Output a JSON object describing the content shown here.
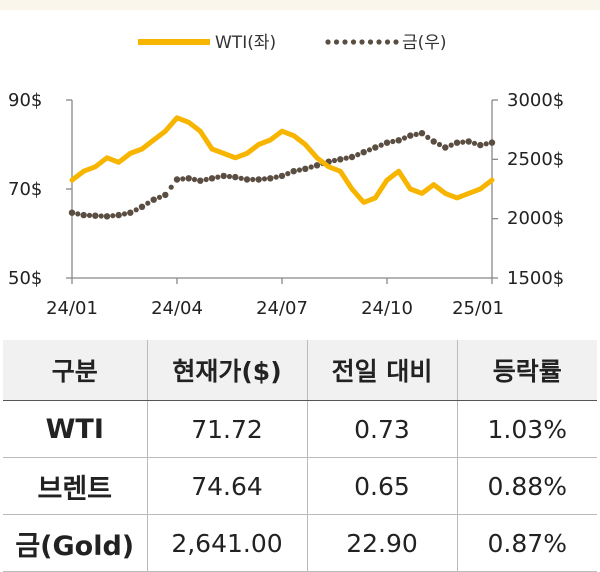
{
  "chart_data": {
    "type": "line",
    "legend": [
      {
        "name": "WTI(좌)",
        "color": "#f7b500",
        "style": "solid"
      },
      {
        "name": "금(우)",
        "color": "#5a4d42",
        "style": "dotted"
      }
    ],
    "legend_position": "top-right",
    "x_ticks": [
      "24/01",
      "24/04",
      "24/07",
      "24/10",
      "25/01"
    ],
    "y_left": {
      "ticks": [
        "90$",
        "70$",
        "50$"
      ],
      "min": 50,
      "max": 90
    },
    "y_right": {
      "ticks": [
        "3000$",
        "2500$",
        "2000$",
        "1500$"
      ],
      "min": 1500,
      "max": 3000
    },
    "series": [
      {
        "name": "WTI(좌)",
        "axis": "left",
        "x": [
          "24/01",
          "24/01",
          "24/01",
          "24/02",
          "24/02",
          "24/02",
          "24/03",
          "24/03",
          "24/03",
          "24/04",
          "24/04",
          "24/04",
          "24/05",
          "24/05",
          "24/05",
          "24/06",
          "24/06",
          "24/06",
          "24/07",
          "24/07",
          "24/07",
          "24/08",
          "24/08",
          "24/08",
          "24/09",
          "24/09",
          "24/09",
          "24/10",
          "24/10",
          "24/10",
          "24/11",
          "24/11",
          "24/11",
          "24/12",
          "24/12",
          "24/12",
          "25/01"
        ],
        "values": [
          72,
          74,
          75,
          77,
          76,
          78,
          79,
          81,
          83,
          86,
          85,
          83,
          79,
          78,
          77,
          78,
          80,
          81,
          83,
          82,
          80,
          77,
          75,
          74,
          70,
          67,
          68,
          72,
          74,
          70,
          69,
          71,
          69,
          68,
          69,
          70,
          72
        ]
      },
      {
        "name": "금(우)",
        "axis": "right",
        "x": [
          "24/01",
          "24/01",
          "24/01",
          "24/02",
          "24/02",
          "24/02",
          "24/03",
          "24/03",
          "24/03",
          "24/04",
          "24/04",
          "24/04",
          "24/05",
          "24/05",
          "24/05",
          "24/06",
          "24/06",
          "24/06",
          "24/07",
          "24/07",
          "24/07",
          "24/08",
          "24/08",
          "24/08",
          "24/09",
          "24/09",
          "24/09",
          "24/10",
          "24/10",
          "24/10",
          "24/11",
          "24/11",
          "24/11",
          "24/12",
          "24/12",
          "24/12",
          "25/01"
        ],
        "values": [
          2050,
          2030,
          2025,
          2020,
          2030,
          2050,
          2100,
          2160,
          2200,
          2330,
          2340,
          2320,
          2340,
          2360,
          2350,
          2330,
          2330,
          2340,
          2360,
          2400,
          2420,
          2450,
          2480,
          2500,
          2520,
          2560,
          2600,
          2640,
          2660,
          2700,
          2720,
          2650,
          2600,
          2640,
          2650,
          2620,
          2641
        ]
      }
    ]
  },
  "table": {
    "headers": [
      "구분",
      "현재가($)",
      "전일 대비",
      "등락률"
    ],
    "rows": [
      [
        "WTI",
        "71.72",
        "0.73",
        "1.03%"
      ],
      [
        "브렌트",
        "74.64",
        "0.65",
        "0.88%"
      ],
      [
        "금(Gold)",
        "2,641.00",
        "22.90",
        "0.87%"
      ]
    ]
  }
}
